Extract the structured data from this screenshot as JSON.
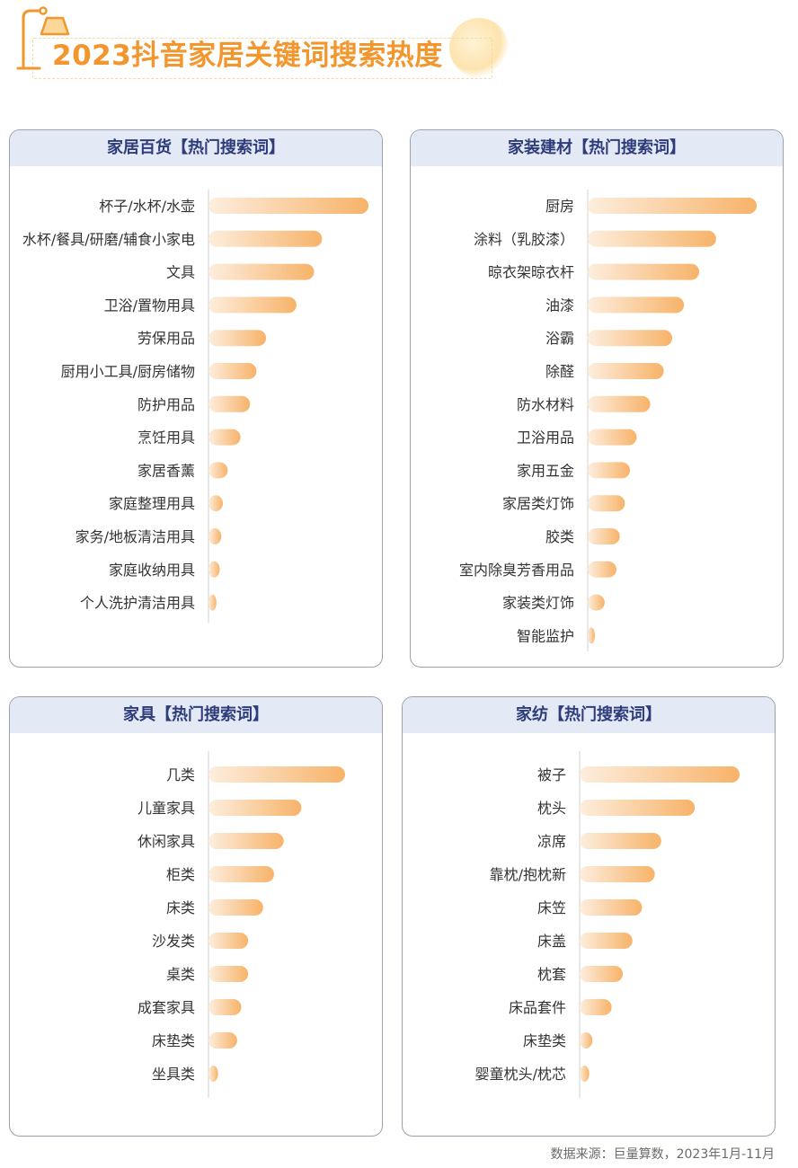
{
  "page": {
    "title": "2023抖音家居关键词搜索热度",
    "source": "数据来源：巨量算数，2023年1月-11月"
  },
  "colors": {
    "bar_start": "#fdeede",
    "bar_end": "#f7b369",
    "header_bg": "#e3e9f5",
    "header_text": "#2f3c7a",
    "title": "#f2962d"
  },
  "chart_data": [
    {
      "type": "bar",
      "orientation": "horizontal",
      "title": "家居百货【热门搜索词】",
      "categories": [
        "杯子/水杯/水壶",
        "水杯/餐具/研磨/辅食小家电",
        "文具",
        "卫浴/置物用具",
        "劳保用品",
        "厨用小工具/厨房储物",
        "防护用品",
        "烹饪用具",
        "家居香薰",
        "家庭整理用具",
        "家务/地板清洁用具",
        "家庭收纳用具",
        "个人洗护清洁用具"
      ],
      "values": [
        100,
        71,
        66,
        55,
        36,
        30,
        26,
        20,
        12,
        9,
        8,
        7,
        5
      ],
      "grid": false
    },
    {
      "type": "bar",
      "orientation": "horizontal",
      "title": "家装建材【热门搜索词】",
      "categories": [
        "厨房",
        "涂料（乳胶漆）",
        "晾衣架晾衣杆",
        "油漆",
        "浴霸",
        "除醛",
        "防水材料",
        "卫浴用品",
        "家用五金",
        "家居类灯饰",
        "胶类",
        "室内除臭芳香用品",
        "家装类灯饰",
        "智能监护"
      ],
      "values": [
        100,
        76,
        66,
        57,
        50,
        45,
        37,
        29,
        25,
        22,
        19,
        17,
        10,
        4
      ],
      "grid": false
    },
    {
      "type": "bar",
      "orientation": "horizontal",
      "title": "家具【热门搜索词】",
      "categories": [
        "几类",
        "儿童家具",
        "休闲家具",
        "柜类",
        "床类",
        "沙发类",
        "桌类",
        "成套家具",
        "床垫类",
        "坐具类"
      ],
      "values": [
        100,
        68,
        55,
        48,
        40,
        29,
        29,
        24,
        21,
        7
      ],
      "grid": false
    },
    {
      "type": "bar",
      "orientation": "horizontal",
      "title": "家纺【热门搜索词】",
      "categories": [
        "被子",
        "枕头",
        "凉席",
        "靠枕/抱枕新",
        "床笠",
        "床盖",
        "枕套",
        "床品套件",
        "床垫类",
        "婴童枕头/枕芯"
      ],
      "values": [
        100,
        72,
        51,
        47,
        39,
        33,
        27,
        20,
        8,
        6
      ],
      "grid": false
    }
  ]
}
